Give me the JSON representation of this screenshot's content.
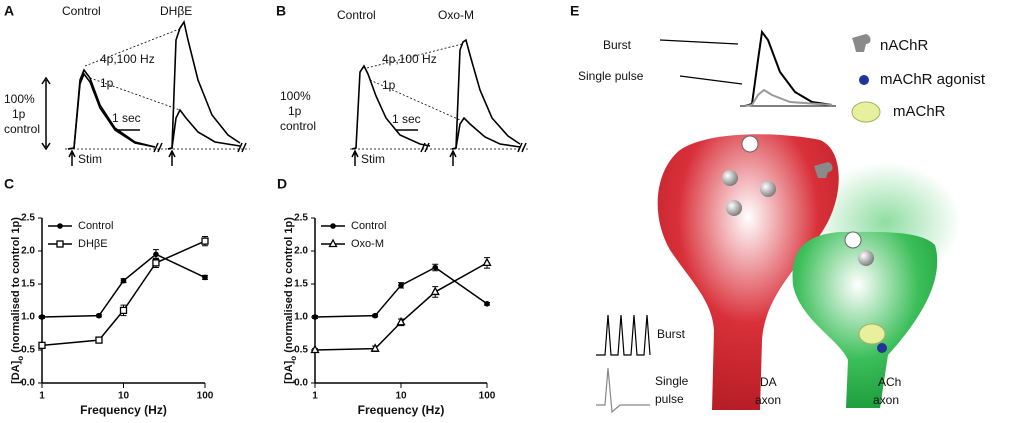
{
  "chart_data": [
    {
      "type": "line",
      "panel": "C",
      "xscale": "log",
      "xlabel": "Frequency (Hz)",
      "ylabel": [
        "[DA]",
        "o",
        " (normalised to control 1p)"
      ],
      "x": [
        1,
        5,
        10,
        25,
        100
      ],
      "series": [
        {
          "name": "Control",
          "color": "#000000",
          "marker": "circle",
          "values": [
            1.0,
            1.02,
            1.55,
            1.95,
            1.6
          ],
          "errors": [
            0.02,
            0.02,
            0.03,
            0.07,
            0.03
          ]
        },
        {
          "name": "DHβE",
          "color": "#000000",
          "marker": "square",
          "values": [
            0.57,
            0.65,
            1.1,
            1.82,
            2.15
          ],
          "errors": [
            0.03,
            0.03,
            0.08,
            0.07,
            0.07
          ]
        }
      ],
      "xlim": [
        1,
        100
      ],
      "xticks": [
        1,
        10,
        100
      ],
      "ylim": [
        0,
        2.5
      ],
      "yticks": [
        {
          "value": 0,
          "label": "0.0"
        },
        0.5,
        {
          "value": 1,
          "label": "1.0"
        },
        1.5,
        {
          "value": 2,
          "label": "2.0"
        },
        2.5
      ],
      "legend": "upper left"
    },
    {
      "type": "line",
      "panel": "D",
      "xscale": "log",
      "xlabel": "Frequency (Hz)",
      "ylabel": [
        "[DA]",
        "o",
        " (normalised to control 1p)"
      ],
      "x": [
        1,
        5,
        10,
        25,
        100
      ],
      "series": [
        {
          "name": "Control",
          "color": "#000000",
          "marker": "circle",
          "values": [
            1.0,
            1.02,
            1.48,
            1.75,
            1.2
          ],
          "errors": [
            0.02,
            0.02,
            0.04,
            0.05,
            0.02
          ]
        },
        {
          "name": "Oxo-M",
          "color": "#000000",
          "marker": "triangle",
          "values": [
            0.5,
            0.52,
            0.92,
            1.38,
            1.82
          ],
          "errors": [
            0.02,
            0.04,
            0.05,
            0.08,
            0.08
          ]
        }
      ],
      "xlim": [
        1,
        100
      ],
      "xticks": [
        1,
        10,
        100
      ],
      "ylim": [
        0,
        2.5
      ],
      "yticks": [
        {
          "value": 0,
          "label": "0.0"
        },
        0.5,
        {
          "value": 1,
          "label": "1.0"
        },
        1.5,
        {
          "value": 2,
          "label": "2.0"
        },
        2.5
      ],
      "legend": "upper left"
    }
  ],
  "panel_a": {
    "letter": "A",
    "control": "Control",
    "drug": "DHβE",
    "burst": "4p,100 Hz",
    "single": "1p",
    "scale1": "100%",
    "scale2": "1p",
    "scale3": "control",
    "time": "1 sec",
    "stim": "Stim"
  },
  "panel_b": {
    "letter": "B",
    "control": "Control",
    "drug": "Oxo-M",
    "burst": "4p,100 Hz",
    "single": "1p",
    "scale1": "100%",
    "scale2": "1p",
    "scale3": "control",
    "time": "1 sec",
    "stim": "Stim"
  },
  "panel_e": {
    "letter": "E",
    "burst": "Burst",
    "single": "Single pulse",
    "legend": [
      "nAChR",
      "mAChR agonist",
      "mAChR"
    ],
    "burst_small": "Burst",
    "single_small": [
      "Single",
      "pulse"
    ],
    "da": [
      "DA",
      "axon"
    ],
    "ach": [
      "ACh",
      "axon"
    ]
  }
}
